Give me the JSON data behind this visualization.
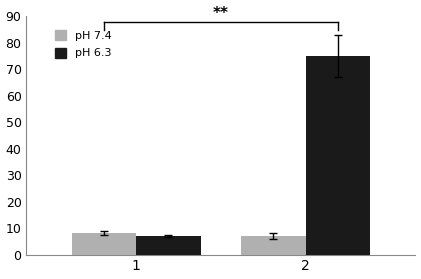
{
  "categories": [
    1,
    2
  ],
  "gray_values": [
    8.2,
    7.0
  ],
  "black_values": [
    7.0,
    75.0
  ],
  "gray_errors": [
    0.7,
    1.2
  ],
  "black_errors": [
    0.4,
    8.0
  ],
  "gray_color": "#b0b0b0",
  "black_color": "#1a1a1a",
  "bar_width": 0.38,
  "ylim": [
    0,
    90
  ],
  "yticks": [
    0,
    10,
    20,
    30,
    40,
    50,
    60,
    70,
    80,
    90
  ],
  "legend_labels": [
    "pH 7.4",
    "pH 6.3"
  ],
  "significance_text": "**",
  "sig_x1": 0.81,
  "sig_x2": 2.19,
  "sig_y": 88,
  "sig_drop": 3,
  "background_color": "#ffffff",
  "xlim": [
    0.35,
    2.65
  ]
}
